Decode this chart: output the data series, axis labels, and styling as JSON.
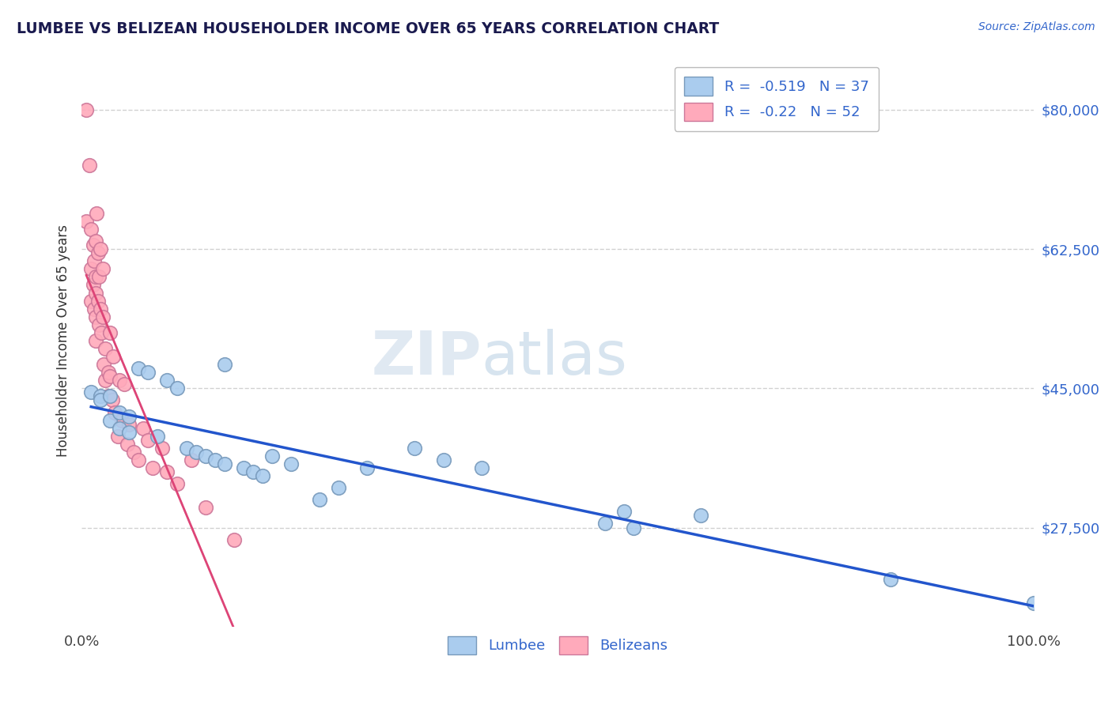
{
  "title": "LUMBEE VS BELIZEAN HOUSEHOLDER INCOME OVER 65 YEARS CORRELATION CHART",
  "source": "Source: ZipAtlas.com",
  "ylabel": "Householder Income Over 65 years",
  "xlim": [
    0.0,
    1.0
  ],
  "ylim": [
    15000,
    87000
  ],
  "yticks": [
    27500,
    45000,
    62500,
    80000
  ],
  "ytick_labels": [
    "$27,500",
    "$45,000",
    "$62,500",
    "$80,000"
  ],
  "xtick_labels": [
    "0.0%",
    "100.0%"
  ],
  "background_color": "#ffffff",
  "grid_color": "#cccccc",
  "lumbee_color": "#aaccee",
  "lumbee_edge": "#7799bb",
  "belizean_color": "#ffaabb",
  "belizean_edge": "#cc7799",
  "lumbee_line_color": "#2255cc",
  "belizean_line_color": "#dd4477",
  "belizean_dash_color": "#ddaaaa",
  "lumbee_R": -0.519,
  "lumbee_N": 37,
  "belizean_R": -0.22,
  "belizean_N": 52,
  "lumbee_x": [
    0.01,
    0.02,
    0.02,
    0.03,
    0.03,
    0.04,
    0.04,
    0.05,
    0.05,
    0.06,
    0.07,
    0.08,
    0.09,
    0.1,
    0.11,
    0.12,
    0.13,
    0.14,
    0.15,
    0.15,
    0.17,
    0.18,
    0.19,
    0.2,
    0.22,
    0.25,
    0.27,
    0.3,
    0.35,
    0.38,
    0.42,
    0.55,
    0.57,
    0.58,
    0.65,
    0.85,
    1.0
  ],
  "lumbee_y": [
    44500,
    44000,
    43500,
    44000,
    41000,
    42000,
    40000,
    41500,
    39500,
    47500,
    47000,
    39000,
    46000,
    45000,
    37500,
    37000,
    36500,
    36000,
    35500,
    48000,
    35000,
    34500,
    34000,
    36500,
    35500,
    31000,
    32500,
    35000,
    37500,
    36000,
    35000,
    28000,
    29500,
    27500,
    29000,
    21000,
    18000
  ],
  "belizean_x": [
    0.005,
    0.005,
    0.008,
    0.01,
    0.01,
    0.01,
    0.012,
    0.012,
    0.013,
    0.013,
    0.015,
    0.015,
    0.015,
    0.015,
    0.015,
    0.016,
    0.017,
    0.017,
    0.018,
    0.018,
    0.02,
    0.02,
    0.021,
    0.022,
    0.022,
    0.023,
    0.025,
    0.025,
    0.028,
    0.028,
    0.03,
    0.03,
    0.032,
    0.033,
    0.035,
    0.038,
    0.04,
    0.042,
    0.045,
    0.048,
    0.05,
    0.055,
    0.06,
    0.065,
    0.07,
    0.075,
    0.085,
    0.09,
    0.1,
    0.115,
    0.13,
    0.16
  ],
  "belizean_y": [
    80000,
    66000,
    73000,
    65000,
    60000,
    56000,
    63000,
    58000,
    61000,
    55000,
    63500,
    59000,
    57000,
    54000,
    51000,
    67000,
    62000,
    56000,
    59000,
    53000,
    62500,
    55000,
    52000,
    60000,
    54000,
    48000,
    50000,
    46000,
    47000,
    44000,
    52000,
    46500,
    43500,
    49000,
    42000,
    39000,
    46000,
    41000,
    45500,
    38000,
    40500,
    37000,
    36000,
    40000,
    38500,
    35000,
    37500,
    34500,
    33000,
    36000,
    30000,
    26000
  ]
}
